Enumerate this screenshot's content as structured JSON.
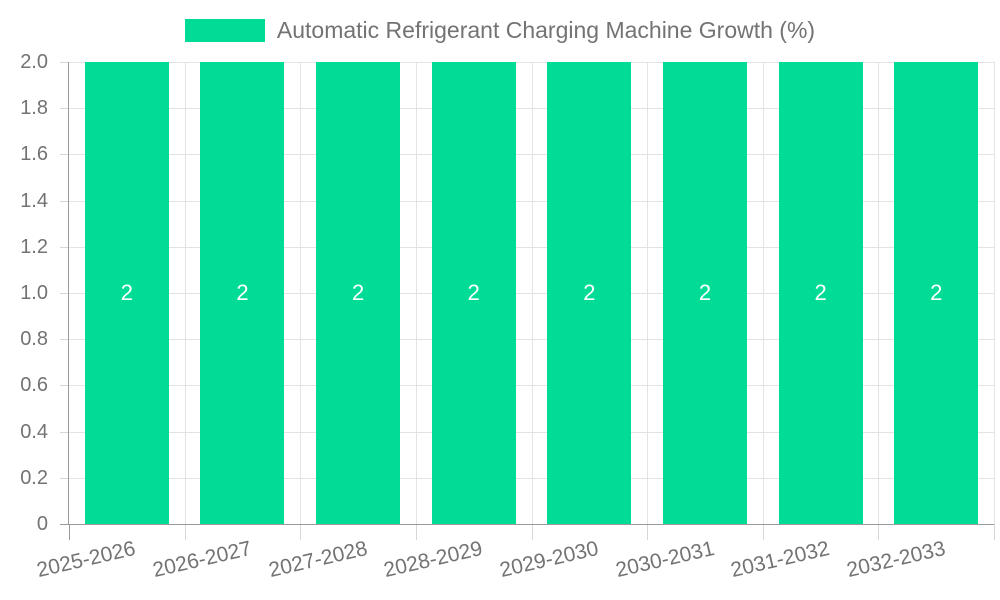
{
  "legend": {
    "label": "Automatic Refrigerant Charging Machine Growth (%)"
  },
  "chart_data": {
    "type": "bar",
    "title": "Automatic Refrigerant Charging Machine Growth (%)",
    "categories": [
      "2025-2026",
      "2026-2027",
      "2027-2028",
      "2028-2029",
      "2029-2030",
      "2030-2031",
      "2031-2032",
      "2032-2033"
    ],
    "values": [
      2,
      2,
      2,
      2,
      2,
      2,
      2,
      2
    ],
    "bar_value_labels": [
      "2",
      "2",
      "2",
      "2",
      "2",
      "2",
      "2",
      "2"
    ],
    "xlabel": "",
    "ylabel": "",
    "ylim": [
      0,
      2
    ],
    "y_tick_labels": [
      "2.0",
      "1.8",
      "1.6",
      "1.4",
      "1.2",
      "1.0",
      "0.8",
      "0.6",
      "0.4",
      "0.2",
      "0"
    ],
    "grid": true,
    "legend_position": "top-center"
  },
  "colors": {
    "bar": "#00DC96",
    "grid": "#E3E3E3",
    "axis": "#9A9A9A",
    "tick": "#D6D6D6",
    "text": "#737373",
    "bar_label": "#FFFFFF"
  }
}
